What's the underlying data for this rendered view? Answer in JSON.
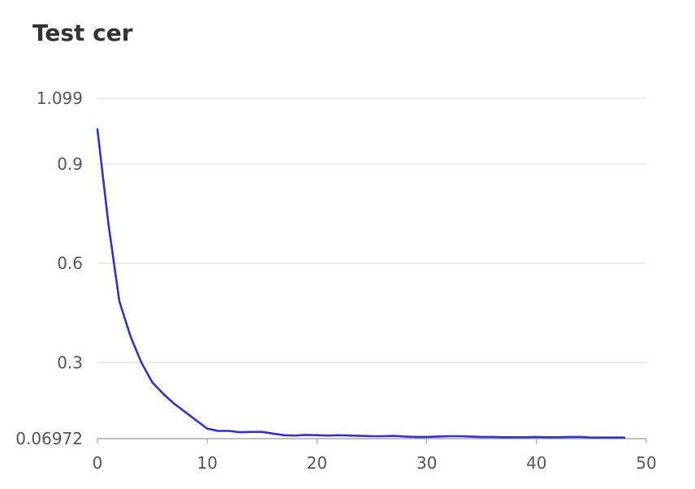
{
  "chart_data": {
    "type": "line",
    "title": "Test cer",
    "xlabel": "",
    "ylabel": "",
    "xlim": [
      0,
      50
    ],
    "ylim": [
      0.06972,
      1.099
    ],
    "grid": true,
    "x_ticks": [
      "0",
      "10",
      "20",
      "30",
      "40",
      "50"
    ],
    "y_ticks": [
      "1.099",
      "0.9",
      "0.6",
      "0.3",
      "0.06972"
    ],
    "line_color": "#3333cc",
    "series": [
      {
        "x": [
          0,
          1,
          2,
          3,
          4,
          5,
          6,
          7,
          8,
          9,
          10,
          11,
          12,
          13,
          14,
          15,
          16,
          17,
          18,
          19,
          20,
          21,
          22,
          23,
          24,
          25,
          26,
          27,
          28,
          29,
          30,
          31,
          32,
          33,
          34,
          35,
          36,
          37,
          38,
          39,
          40,
          41,
          42,
          43,
          44,
          45,
          46,
          47,
          48
        ],
        "values": [
          1.005,
          0.72,
          0.485,
          0.38,
          0.3,
          0.24,
          0.205,
          0.175,
          0.15,
          0.125,
          0.1,
          0.093,
          0.093,
          0.089,
          0.09,
          0.09,
          0.085,
          0.08,
          0.079,
          0.081,
          0.08,
          0.079,
          0.08,
          0.079,
          0.078,
          0.077,
          0.077,
          0.078,
          0.076,
          0.075,
          0.075,
          0.076,
          0.077,
          0.077,
          0.076,
          0.075,
          0.075,
          0.074,
          0.074,
          0.074,
          0.075,
          0.074,
          0.074,
          0.075,
          0.075,
          0.073,
          0.073,
          0.073,
          0.073
        ]
      }
    ]
  }
}
